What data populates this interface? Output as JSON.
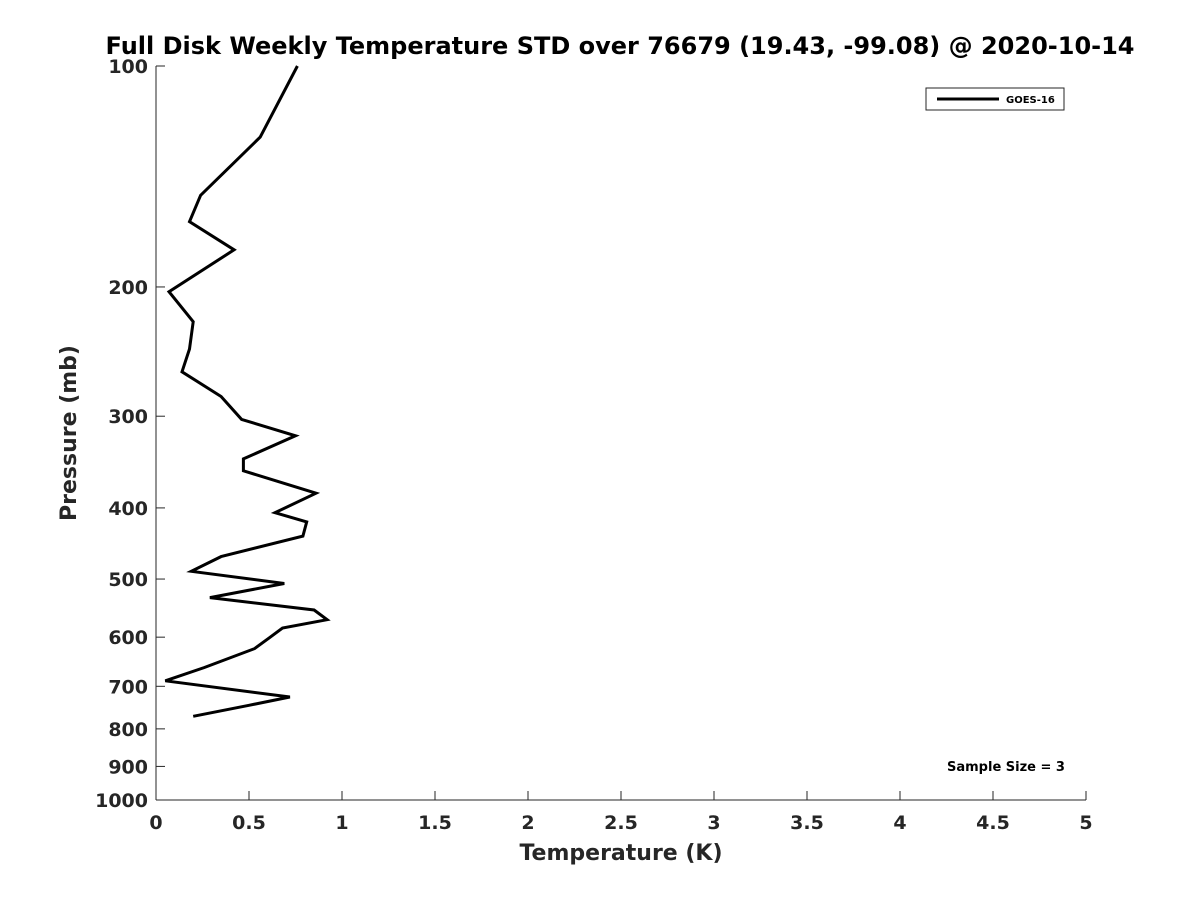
{
  "chart_data": {
    "type": "line",
    "title": "Full Disk Weekly Temperature STD over 76679 (19.43, -99.08) @ 2020-10-14",
    "xlabel": "Temperature (K)",
    "ylabel": "Pressure (mb)",
    "xlim": [
      0,
      5
    ],
    "ylim": [
      100,
      1000
    ],
    "y_scale": "log",
    "y_reversed": true,
    "grid": false,
    "legend_position": "top-right",
    "x_ticks": [
      "0",
      "0.5",
      "1",
      "1.5",
      "2",
      "2.5",
      "3",
      "3.5",
      "4",
      "4.5",
      "5"
    ],
    "y_ticks": [
      "100",
      "200",
      "300",
      "400",
      "500",
      "600",
      "700",
      "800",
      "900",
      "1000"
    ],
    "series": [
      {
        "name": "GOES-16",
        "color": "#000000",
        "x": [
          0.76,
          0.56,
          0.24,
          0.18,
          0.42,
          0.07,
          0.2,
          0.18,
          0.14,
          0.35,
          0.46,
          0.75,
          0.47,
          0.47,
          0.86,
          0.64,
          0.81,
          0.79,
          0.35,
          0.19,
          0.69,
          0.29,
          0.85,
          0.92,
          0.68,
          0.61,
          0.53,
          0.26,
          0.05,
          0.72,
          0.5,
          0.2
        ],
        "y": [
          100,
          125,
          150,
          163,
          178,
          203,
          223,
          243,
          261,
          282,
          303,
          319,
          343,
          356,
          382,
          406,
          418,
          437,
          466,
          488,
          507,
          530,
          551,
          568,
          583,
          601,
          622,
          660,
          688,
          724,
          743,
          769
        ]
      }
    ],
    "annotations": [
      "Sample Size = 3"
    ]
  }
}
